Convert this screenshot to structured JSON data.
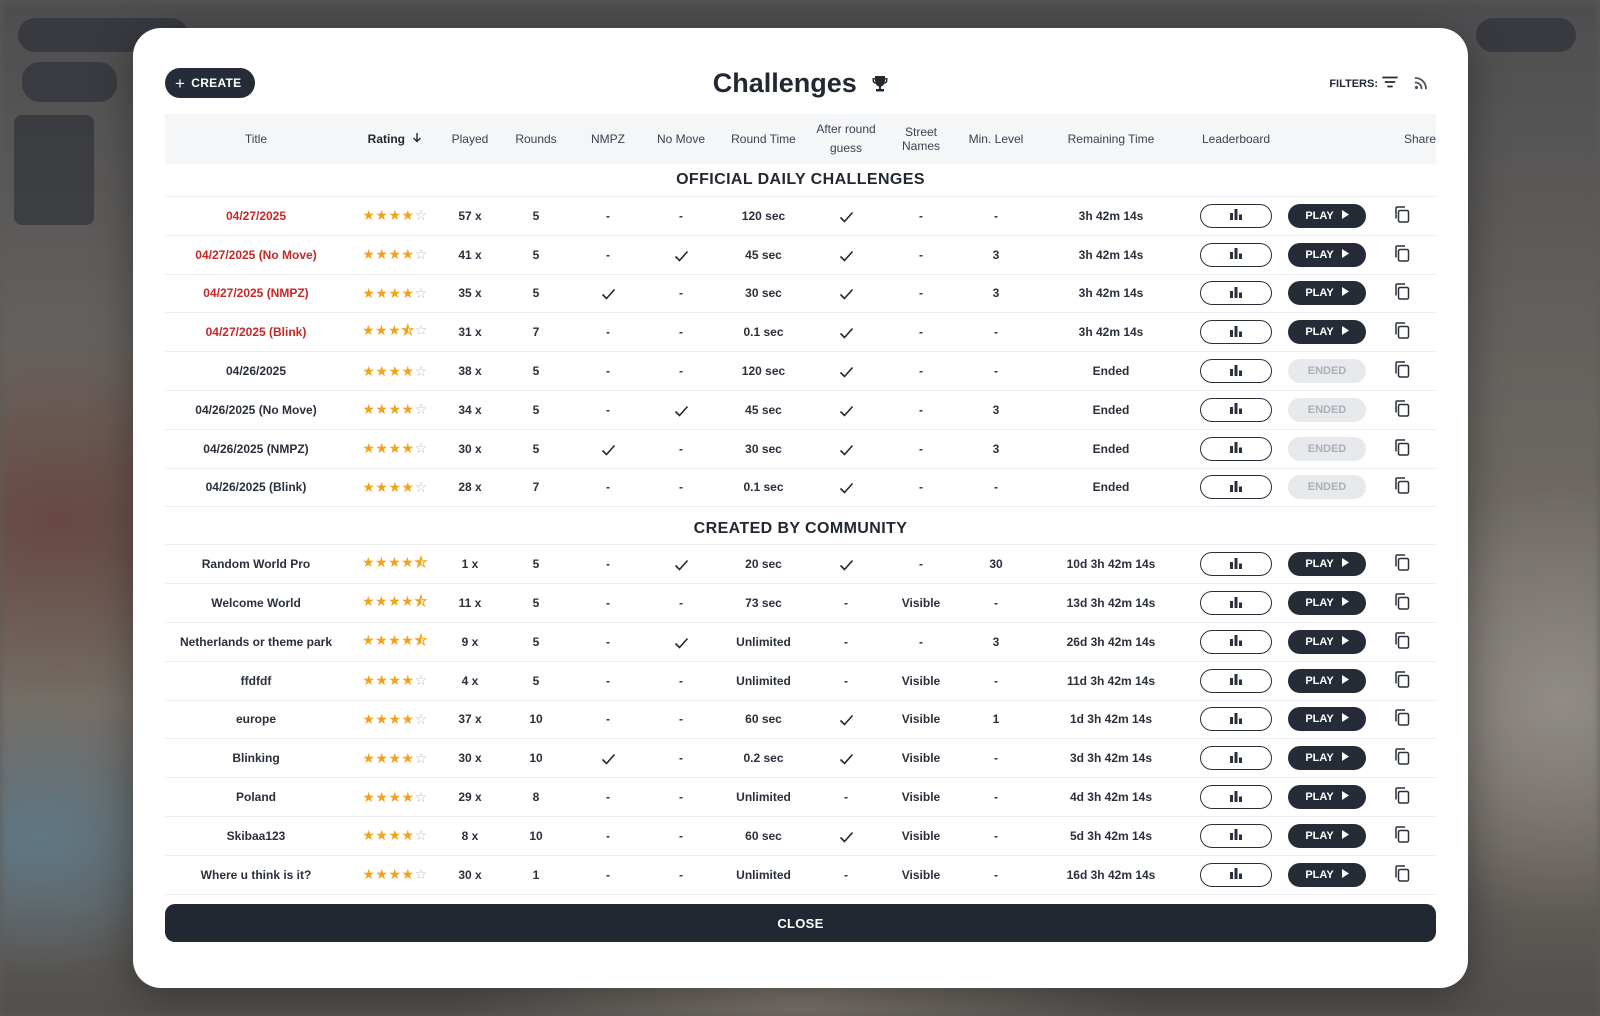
{
  "header": {
    "create_label": "CREATE",
    "title": "Challenges",
    "filters_label": "FILTERS:"
  },
  "columns": [
    "Title",
    "Rating",
    "Played",
    "Rounds",
    "NMPZ",
    "No Move",
    "Round Time",
    "After round guess",
    "Street Names",
    "Min. Level",
    "Remaining Time",
    "Leaderboard",
    "",
    "Share"
  ],
  "sections": {
    "official": "OFFICIAL DAILY CHALLENGES",
    "community": "CREATED BY COMMUNITY"
  },
  "official_rows": [
    {
      "title": "04/27/2025",
      "red": true,
      "rating": 4,
      "played": "57 x",
      "rounds": "5",
      "nmpz": "-",
      "nomove": "-",
      "rtime": "120 sec",
      "after": "check",
      "street": "-",
      "minlvl": "-",
      "remain": "3h 42m 14s",
      "play": "PLAY"
    },
    {
      "title": "04/27/2025 (No Move)",
      "red": true,
      "rating": 4,
      "played": "41 x",
      "rounds": "5",
      "nmpz": "-",
      "nomove": "check",
      "rtime": "45 sec",
      "after": "check",
      "street": "-",
      "minlvl": "3",
      "remain": "3h 42m 14s",
      "play": "PLAY"
    },
    {
      "title": "04/27/2025 (NMPZ)",
      "red": true,
      "rating": 4,
      "played": "35 x",
      "rounds": "5",
      "nmpz": "check",
      "nomove": "-",
      "rtime": "30 sec",
      "after": "check",
      "street": "-",
      "minlvl": "3",
      "remain": "3h 42m 14s",
      "play": "PLAY"
    },
    {
      "title": "04/27/2025 (Blink)",
      "red": true,
      "rating": 3.5,
      "played": "31 x",
      "rounds": "7",
      "nmpz": "-",
      "nomove": "-",
      "rtime": "0.1 sec",
      "after": "check",
      "street": "-",
      "minlvl": "-",
      "remain": "3h 42m 14s",
      "play": "PLAY"
    },
    {
      "title": "04/26/2025",
      "red": false,
      "rating": 4,
      "played": "38 x",
      "rounds": "5",
      "nmpz": "-",
      "nomove": "-",
      "rtime": "120 sec",
      "after": "check",
      "street": "-",
      "minlvl": "-",
      "remain": "Ended",
      "play": "ENDED"
    },
    {
      "title": "04/26/2025 (No Move)",
      "red": false,
      "rating": 4,
      "played": "34 x",
      "rounds": "5",
      "nmpz": "-",
      "nomove": "check",
      "rtime": "45 sec",
      "after": "check",
      "street": "-",
      "minlvl": "3",
      "remain": "Ended",
      "play": "ENDED"
    },
    {
      "title": "04/26/2025 (NMPZ)",
      "red": false,
      "rating": 4,
      "played": "30 x",
      "rounds": "5",
      "nmpz": "check",
      "nomove": "-",
      "rtime": "30 sec",
      "after": "check",
      "street": "-",
      "minlvl": "3",
      "remain": "Ended",
      "play": "ENDED"
    },
    {
      "title": "04/26/2025 (Blink)",
      "red": false,
      "rating": 4,
      "played": "28 x",
      "rounds": "7",
      "nmpz": "-",
      "nomove": "-",
      "rtime": "0.1 sec",
      "after": "check",
      "street": "-",
      "minlvl": "-",
      "remain": "Ended",
      "play": "ENDED"
    }
  ],
  "community_rows": [
    {
      "title": "Random World Pro",
      "red": false,
      "rating": 4.5,
      "played": "1 x",
      "rounds": "5",
      "nmpz": "-",
      "nomove": "check",
      "rtime": "20 sec",
      "after": "check",
      "street": "-",
      "minlvl": "30",
      "remain": "10d 3h 42m 14s",
      "play": "PLAY"
    },
    {
      "title": "Welcome World",
      "red": false,
      "rating": 4.5,
      "played": "11 x",
      "rounds": "5",
      "nmpz": "-",
      "nomove": "-",
      "rtime": "73 sec",
      "after": "-",
      "street": "Visible",
      "minlvl": "-",
      "remain": "13d 3h 42m 14s",
      "play": "PLAY"
    },
    {
      "title": "Netherlands or theme park",
      "red": false,
      "rating": 4.5,
      "played": "9 x",
      "rounds": "5",
      "nmpz": "-",
      "nomove": "check",
      "rtime": "Unlimited",
      "after": "-",
      "street": "-",
      "minlvl": "3",
      "remain": "26d 3h 42m 14s",
      "play": "PLAY"
    },
    {
      "title": "ffdfdf",
      "red": false,
      "rating": 4,
      "played": "4 x",
      "rounds": "5",
      "nmpz": "-",
      "nomove": "-",
      "rtime": "Unlimited",
      "after": "-",
      "street": "Visible",
      "minlvl": "-",
      "remain": "11d 3h 42m 14s",
      "play": "PLAY"
    },
    {
      "title": "europe",
      "red": false,
      "rating": 4,
      "played": "37 x",
      "rounds": "10",
      "nmpz": "-",
      "nomove": "-",
      "rtime": "60 sec",
      "after": "check",
      "street": "Visible",
      "minlvl": "1",
      "remain": "1d 3h 42m 14s",
      "play": "PLAY"
    },
    {
      "title": "Blinking",
      "red": false,
      "rating": 4,
      "played": "30 x",
      "rounds": "10",
      "nmpz": "check",
      "nomove": "-",
      "rtime": "0.2 sec",
      "after": "check",
      "street": "Visible",
      "minlvl": "-",
      "remain": "3d 3h 42m 14s",
      "play": "PLAY"
    },
    {
      "title": "Poland",
      "red": false,
      "rating": 4,
      "played": "29 x",
      "rounds": "8",
      "nmpz": "-",
      "nomove": "-",
      "rtime": "Unlimited",
      "after": "-",
      "street": "Visible",
      "minlvl": "-",
      "remain": "4d 3h 42m 14s",
      "play": "PLAY"
    },
    {
      "title": "Skibaa123",
      "red": false,
      "rating": 4,
      "played": "8 x",
      "rounds": "10",
      "nmpz": "-",
      "nomove": "-",
      "rtime": "60 sec",
      "after": "check",
      "street": "Visible",
      "minlvl": "-",
      "remain": "5d 3h 42m 14s",
      "play": "PLAY"
    },
    {
      "title": "Where u think is it?",
      "red": false,
      "rating": 4,
      "played": "30 x",
      "rounds": "1",
      "nmpz": "-",
      "nomove": "-",
      "rtime": "Unlimited",
      "after": "-",
      "street": "Visible",
      "minlvl": "-",
      "remain": "16d 3h 42m 14s",
      "play": "PLAY"
    }
  ],
  "footer": {
    "close_label": "CLOSE"
  },
  "colors": {
    "dark": "#252c38",
    "red": "#c62828",
    "star": "#f2a21b"
  },
  "icons": {
    "create": "plus-icon",
    "title": "trophy-icon",
    "filters": "filter-icon",
    "feed": "rss-icon",
    "sort": "arrow-down-icon",
    "leaderboard": "bar-chart-icon",
    "play": "play-triangle-icon",
    "share": "copy-icon",
    "check": "check-icon"
  }
}
